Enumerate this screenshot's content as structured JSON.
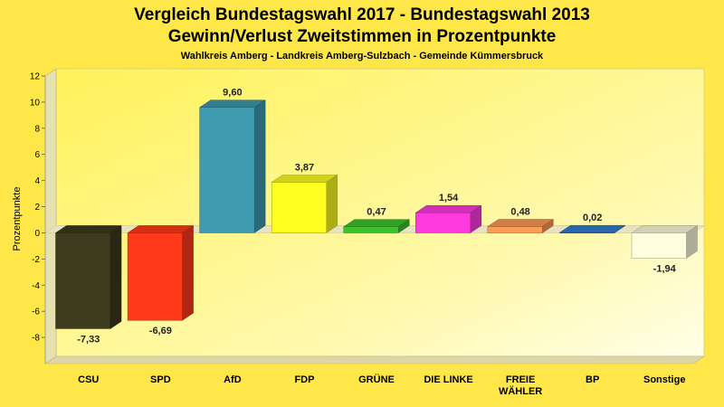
{
  "chart_data": {
    "type": "bar",
    "title_line1": "Vergleich Bundestagswahl 2017 - Bundestagswahl 2013",
    "title_line2": "Gewinn/Verlust Zweitstimmen in Prozentpunkte",
    "subtitle": "Wahlkreis Amberg - Landkreis Amberg-Sulzbach - Gemeinde Kümmersbruck",
    "ylabel": "Prozentpunkte",
    "xlabel": "",
    "ylim": [
      -10,
      12
    ],
    "yticks": [
      12,
      10,
      8,
      6,
      4,
      2,
      0,
      -2,
      -4,
      -6,
      -8
    ],
    "grid": false,
    "categories": [
      {
        "label": [
          "CSU"
        ],
        "value": -7.33,
        "value_label": "-7,33",
        "color": "#3D3A1E"
      },
      {
        "label": [
          "SPD"
        ],
        "value": -6.69,
        "value_label": "-6,69",
        "color": "#FF3A1A"
      },
      {
        "label": [
          "AfD"
        ],
        "value": 9.6,
        "value_label": "9,60",
        "color": "#3E9BB0"
      },
      {
        "label": [
          "FDP"
        ],
        "value": 3.87,
        "value_label": "3,87",
        "color": "#FFFF22"
      },
      {
        "label": [
          "GRÜNE"
        ],
        "value": 0.47,
        "value_label": "0,47",
        "color": "#3BC42A"
      },
      {
        "label": [
          "DIE LINKE"
        ],
        "value": 1.54,
        "value_label": "1,54",
        "color": "#FF3BE0"
      },
      {
        "label": [
          "FREIE",
          "WÄHLER"
        ],
        "value": 0.48,
        "value_label": "0,48",
        "color": "#FF9A55"
      },
      {
        "label": [
          "BP"
        ],
        "value": 0.02,
        "value_label": "0,02",
        "color": "#2F7FD0"
      },
      {
        "label": [
          "Sonstige"
        ],
        "value": -1.94,
        "value_label": "-1,94",
        "color": "#FFFFE0"
      }
    ]
  }
}
